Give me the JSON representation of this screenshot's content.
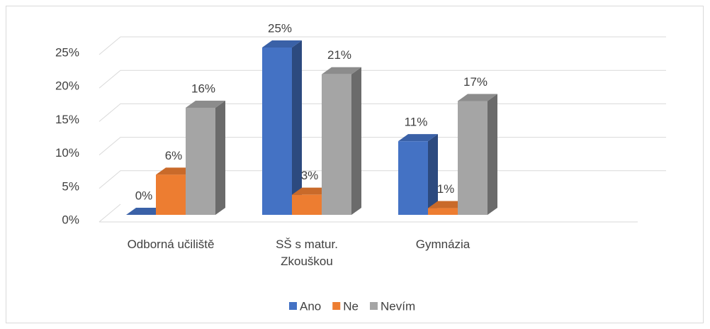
{
  "chart_data": {
    "type": "bar3d",
    "categories": [
      "Odborná učiliště",
      "SŠ s matur. Zkouškou",
      "Gymnázia"
    ],
    "series": [
      {
        "name": "Ano",
        "color": "#4472c4",
        "values": [
          0,
          25,
          11
        ],
        "value_labels": [
          "0%",
          "25%",
          "11%"
        ]
      },
      {
        "name": "Ne",
        "color": "#ed7d31",
        "values": [
          6,
          3,
          1
        ],
        "value_labels": [
          "6%",
          "3%",
          "1%"
        ]
      },
      {
        "name": "Nevím",
        "color": "#a5a5a5",
        "values": [
          16,
          21,
          17
        ],
        "value_labels": [
          "16%",
          "21%",
          "17%"
        ]
      }
    ],
    "ylim": [
      0,
      25
    ],
    "yticks": [
      {
        "value": 0,
        "label": "0%"
      },
      {
        "value": 5,
        "label": "5%"
      },
      {
        "value": 10,
        "label": "10%"
      },
      {
        "value": 15,
        "label": "15%"
      },
      {
        "value": 20,
        "label": "20%"
      },
      {
        "value": 25,
        "label": "25%"
      }
    ],
    "grid": true,
    "legend": "bottom"
  }
}
